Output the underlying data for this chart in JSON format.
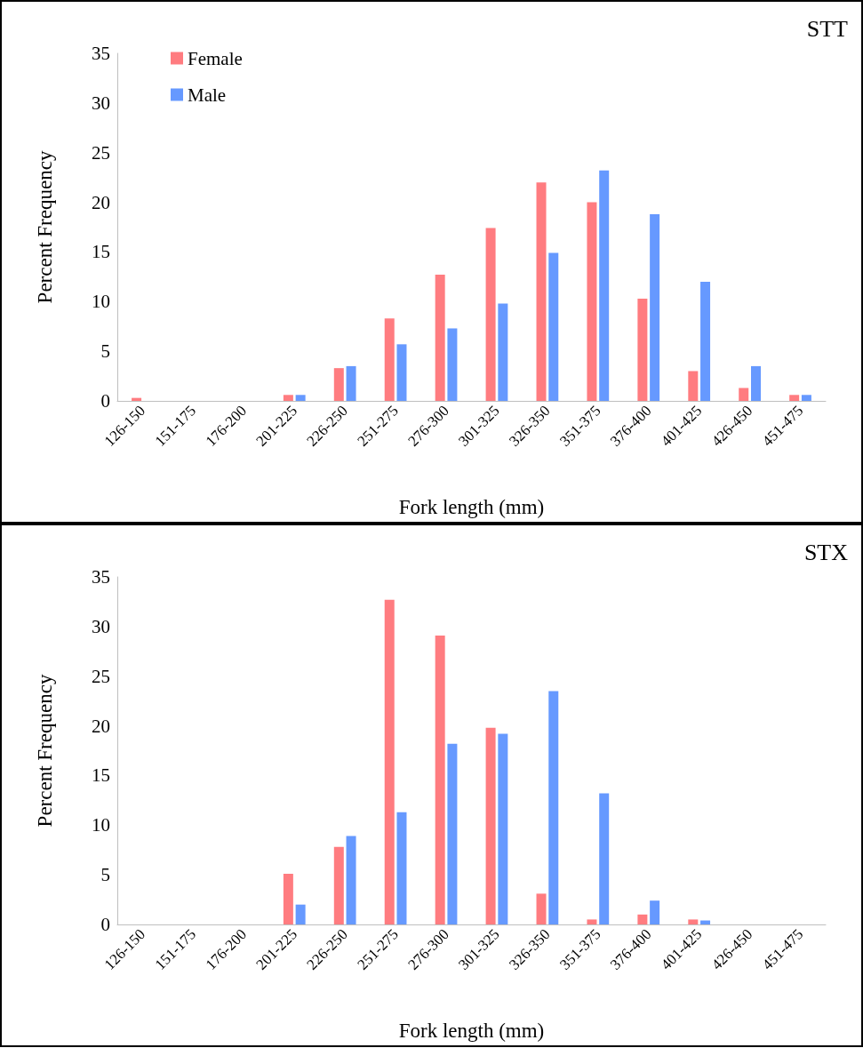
{
  "chart_data": [
    {
      "type": "bar",
      "title": "STT",
      "xlabel": "Fork length (mm)",
      "ylabel": "Percent Frequency",
      "categories": [
        "126-150",
        "151-175",
        "176-200",
        "201-225",
        "226-250",
        "251-275",
        "276-300",
        "301-325",
        "326-350",
        "351-375",
        "376-400",
        "401-425",
        "426-450",
        "451-475"
      ],
      "series": [
        {
          "name": "Female",
          "color": "#ff7c80",
          "values": [
            0.3,
            0,
            0,
            0.6,
            3.3,
            8.3,
            12.7,
            17.4,
            22.0,
            20.0,
            10.3,
            3.0,
            1.3,
            0.6
          ]
        },
        {
          "name": "Male",
          "color": "#6699ff",
          "values": [
            0,
            0,
            0,
            0.6,
            3.5,
            5.7,
            7.3,
            9.8,
            14.9,
            23.2,
            18.8,
            12.0,
            3.5,
            0.6
          ]
        }
      ],
      "ylim": [
        0,
        35
      ],
      "yticks": [
        0,
        5,
        10,
        15,
        20,
        25,
        30,
        35
      ],
      "grid": false,
      "legend": "top left"
    },
    {
      "type": "bar",
      "title": "STX",
      "xlabel": "Fork length (mm)",
      "ylabel": "Percent Frequency",
      "categories": [
        "126-150",
        "151-175",
        "176-200",
        "201-225",
        "226-250",
        "251-275",
        "276-300",
        "301-325",
        "326-350",
        "351-375",
        "376-400",
        "401-425",
        "426-450",
        "451-475"
      ],
      "series": [
        {
          "color": "#ff7c80",
          "values": [
            0,
            0,
            0,
            5.1,
            7.8,
            32.7,
            29.1,
            19.8,
            3.1,
            0.5,
            1.0,
            0.5,
            0,
            0
          ]
        },
        {
          "color": "#6699ff",
          "values": [
            0,
            0,
            0,
            2.0,
            8.9,
            11.3,
            18.2,
            19.2,
            23.5,
            13.2,
            2.4,
            0.4,
            0,
            0
          ]
        }
      ],
      "ylim": [
        0,
        35
      ],
      "yticks": [
        0,
        5,
        10,
        15,
        20,
        25,
        30,
        35
      ],
      "grid": false,
      "legend": false
    }
  ]
}
